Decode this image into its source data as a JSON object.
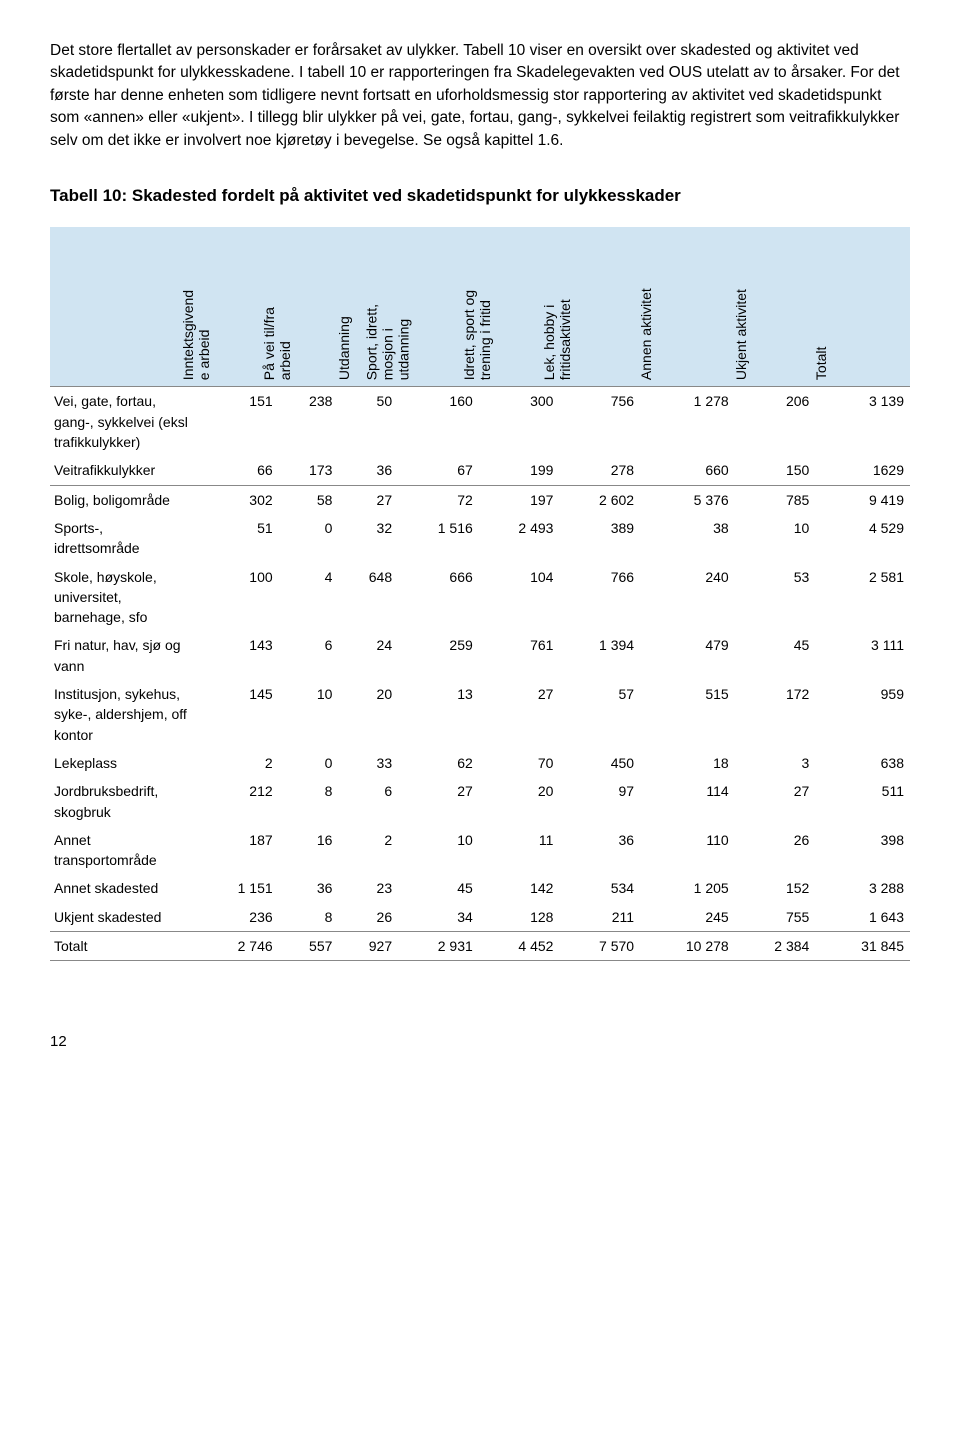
{
  "paragraph": "Det store flertallet av personskader er forårsaket av ulykker. Tabell 10 viser en oversikt over skadested og aktivitet ved skadetidspunkt for ulykkesskadene. I tabell 10 er rapporteringen fra Skadelegevakten ved OUS utelatt av to årsaker. For det første har denne enheten som tidligere nevnt fortsatt en uforholdsmessig stor rapportering av aktivitet ved skadetidspunkt som «annen» eller «ukjent». I tillegg blir ulykker på vei, gate, fortau, gang-, sykkelvei feilaktig registrert som veitrafikkulykker selv om det ikke er involvert noe kjøretøy i bevegelse. Se også kapittel 1.6.",
  "table_title": "Tabell 10: Skadested fordelt på aktivitet ved skadetidspunkt for ulykkesskader",
  "columns": [
    {
      "lines": [
        "Inntektsgivend",
        "e arbeid"
      ]
    },
    {
      "lines": [
        "På vei til/fra",
        "arbeid"
      ]
    },
    {
      "lines": [
        "Utdanning"
      ]
    },
    {
      "lines": [
        "Sport, idrett,",
        "mosjon i",
        "utdanning"
      ]
    },
    {
      "lines": [
        "Idrett, sport og",
        "trening i fritid"
      ]
    },
    {
      "lines": [
        "Lek, hobby i",
        "fritidsaktivitet"
      ]
    },
    {
      "lines": [
        "Annen aktivitet"
      ]
    },
    {
      "lines": [
        "Ukjent aktivitet"
      ]
    },
    {
      "lines": [
        "Totalt"
      ]
    }
  ],
  "rows": [
    {
      "label": "Vei, gate, fortau, gang-, sykkelvei (eksl trafikkulykker)",
      "v": [
        "151",
        "238",
        "50",
        "160",
        "300",
        "756",
        "1 278",
        "206",
        "3 139"
      ],
      "break": false
    },
    {
      "label": "Veitrafikkulykker",
      "v": [
        "66",
        "173",
        "36",
        "67",
        "199",
        "278",
        "660",
        "150",
        "1629"
      ],
      "break": false
    },
    {
      "label": "Bolig, boligområde",
      "v": [
        "302",
        "58",
        "27",
        "72",
        "197",
        "2 602",
        "5 376",
        "785",
        "9 419"
      ],
      "break": true
    },
    {
      "label": "Sports-, idrettsområde",
      "v": [
        "51",
        "0",
        "32",
        "1 516",
        "2 493",
        "389",
        "38",
        "10",
        "4 529"
      ],
      "break": false
    },
    {
      "label": "Skole, høyskole, universitet, barnehage, sfo",
      "v": [
        "100",
        "4",
        "648",
        "666",
        "104",
        "766",
        "240",
        "53",
        "2 581"
      ],
      "break": false
    },
    {
      "label": "Fri natur, hav, sjø og vann",
      "v": [
        "143",
        "6",
        "24",
        "259",
        "761",
        "1 394",
        "479",
        "45",
        "3 111"
      ],
      "break": false
    },
    {
      "label": "Institusjon, sykehus, syke-, aldershjem, off kontor",
      "v": [
        "145",
        "10",
        "20",
        "13",
        "27",
        "57",
        "515",
        "172",
        "959"
      ],
      "break": false
    },
    {
      "label": "Lekeplass",
      "v": [
        "2",
        "0",
        "33",
        "62",
        "70",
        "450",
        "18",
        "3",
        "638"
      ],
      "break": false
    },
    {
      "label": "Jordbruksbedrift, skogbruk",
      "v": [
        "212",
        "8",
        "6",
        "27",
        "20",
        "97",
        "114",
        "27",
        "511"
      ],
      "break": false
    },
    {
      "label": "Annet transportområde",
      "v": [
        "187",
        "16",
        "2",
        "10",
        "11",
        "36",
        "110",
        "26",
        "398"
      ],
      "break": false
    },
    {
      "label": "Annet skadested",
      "v": [
        "1 151",
        "36",
        "23",
        "45",
        "142",
        "534",
        "1 205",
        "152",
        "3 288"
      ],
      "break": false
    },
    {
      "label": "Ukjent skadested",
      "v": [
        "236",
        "8",
        "26",
        "34",
        "128",
        "211",
        "245",
        "755",
        "1 643"
      ],
      "break": false
    }
  ],
  "total_row": {
    "label": "Totalt",
    "v": [
      "2 746",
      "557",
      "927",
      "2 931",
      "4 452",
      "7 570",
      "10 278",
      "2 384",
      "31 845"
    ]
  },
  "page_number": "12",
  "colors": {
    "header_bg": "#d0e4f2",
    "border": "#888888",
    "text": "#000000",
    "background": "#ffffff"
  }
}
